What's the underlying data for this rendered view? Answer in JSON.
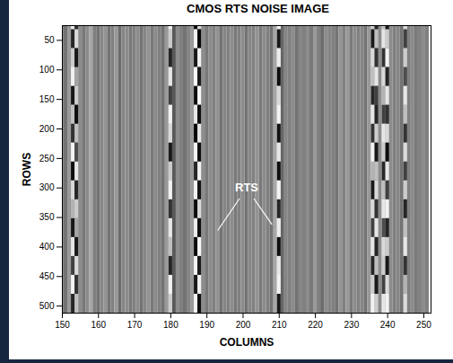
{
  "chart_data": {
    "type": "heatmap",
    "title": "CMOS RTS NOISE IMAGE",
    "xlabel": "COLUMNS",
    "ylabel": "ROWS",
    "xlim": [
      150,
      252
    ],
    "ylim": [
      25,
      512
    ],
    "xticks": [
      150,
      160,
      170,
      180,
      190,
      200,
      210,
      220,
      230,
      240,
      250
    ],
    "yticks": [
      50,
      100,
      150,
      200,
      250,
      300,
      350,
      400,
      450,
      500
    ],
    "color_range": [
      -1,
      1
    ],
    "column_cells": {
      "columns": [
        150,
        151,
        152,
        153,
        154,
        155,
        156,
        157,
        158,
        159,
        160,
        161,
        162,
        163,
        164,
        165,
        166,
        167,
        168,
        169,
        170,
        171,
        172,
        173,
        174,
        175,
        176,
        177,
        178,
        179,
        180,
        181,
        182,
        183,
        184,
        185,
        186,
        187,
        188,
        189,
        190,
        191,
        192,
        193,
        194,
        195,
        196,
        197,
        198,
        199,
        200,
        201,
        202,
        203,
        204,
        205,
        206,
        207,
        208,
        209,
        210,
        211,
        212,
        213,
        214,
        215,
        216,
        217,
        218,
        219,
        220,
        221,
        222,
        223,
        224,
        225,
        226,
        227,
        228,
        229,
        230,
        231,
        232,
        233,
        234,
        235,
        236,
        237,
        238,
        239,
        240,
        241,
        242,
        243,
        244,
        245,
        246,
        247,
        248,
        249,
        250,
        251
      ],
      "values": [
        0.05,
        -0.1,
        0.2,
        0.5,
        -0.4,
        0.1,
        -0.05,
        0.1,
        0.3,
        0.0,
        -0.1,
        0.05,
        0.15,
        -0.1,
        0.0,
        0.2,
        -0.15,
        0.05,
        0.1,
        -0.05,
        0.0,
        0.1,
        -0.1,
        0.05,
        0.15,
        -0.05,
        0.1,
        0.0,
        -0.1,
        0.2,
        0.4,
        -0.3,
        0.1,
        0.0,
        -0.1,
        0.05,
        0.2,
        0.6,
        -0.5,
        0.1,
        -0.05,
        0.1,
        0.0,
        0.15,
        -0.1,
        0.05,
        0.0,
        0.1,
        -0.05,
        0.0,
        0.1,
        -0.1,
        0.05,
        0.0,
        0.15,
        -0.05,
        0.1,
        0.0,
        -0.1,
        0.3,
        0.5,
        -0.2,
        0.05,
        0.0,
        0.1,
        -0.1,
        0.05,
        0.0,
        0.1,
        -0.05,
        0.2,
        0.0,
        -0.15,
        0.1,
        0.05,
        0.0,
        -0.1,
        0.15,
        0.0,
        0.2,
        -0.05,
        0.1,
        0.0,
        0.05,
        -0.1,
        0.2,
        0.5,
        -0.3,
        0.1,
        0.4,
        -0.3,
        0.1,
        0.0,
        0.05,
        -0.1,
        0.3,
        0.0,
        0.1,
        -0.05,
        0.0,
        0.1,
        0.0
      ]
    },
    "rts_cells": {
      "row_edges": [
        0,
        32,
        64,
        96,
        128,
        160,
        192,
        224,
        256,
        288,
        320,
        352,
        384,
        416,
        448,
        480,
        512
      ],
      "columns": [
        153,
        154,
        180,
        187,
        188,
        210,
        236,
        237,
        239,
        240,
        245
      ],
      "values": [
        [
          0.8,
          -0.7,
          0.6,
          0.9,
          -0.8,
          0.5,
          -0.6,
          0.9,
          -0.9,
          0.7,
          0.4,
          -0.8,
          0.8,
          -0.5,
          0.9,
          -0.7
        ],
        [
          -0.6,
          0.7,
          -0.8,
          0.3,
          0.6,
          -0.9,
          0.5,
          -0.4,
          0.8,
          -0.7,
          0.6,
          0.3,
          -0.8,
          0.7,
          -0.6,
          0.5
        ],
        [
          0.9,
          0.6,
          -0.7,
          0.8,
          -0.5,
          0.9,
          0.7,
          -0.8,
          0.6,
          0.9,
          -0.6,
          0.8,
          0.5,
          -0.7,
          0.9,
          0.6
        ],
        [
          -0.9,
          0.9,
          -0.8,
          0.95,
          -0.9,
          0.8,
          -0.95,
          0.9,
          -0.7,
          0.9,
          -0.9,
          0.85,
          -0.9,
          0.9,
          -0.8,
          0.9
        ],
        [
          0.7,
          -0.95,
          0.9,
          -0.8,
          0.95,
          -0.9,
          0.8,
          -0.9,
          0.9,
          -0.85,
          0.7,
          -0.9,
          0.95,
          -0.8,
          0.9,
          -0.9
        ],
        [
          0.9,
          -0.8,
          0.85,
          -0.9,
          0.7,
          0.9,
          -0.85,
          0.8,
          -0.9,
          0.9,
          -0.7,
          0.85,
          -0.9,
          0.8,
          0.9,
          -0.8
        ],
        [
          0.6,
          -0.8,
          0.7,
          0.5,
          -0.7,
          0.8,
          -0.6,
          0.9,
          0.4,
          -0.8,
          0.7,
          -0.5,
          0.8,
          -0.7,
          0.6,
          0.9
        ],
        [
          -0.7,
          0.5,
          -0.6,
          0.8,
          -0.5,
          -0.7,
          0.6,
          -0.8,
          0.5,
          0.7,
          -0.6,
          0.8,
          -0.7,
          0.5,
          -0.8,
          0.6
        ],
        [
          0.5,
          0.8,
          -0.6,
          0.7,
          0.4,
          -0.5,
          0.8,
          0.6,
          -0.7,
          0.5,
          0.8,
          -0.4,
          0.7,
          0.6,
          -0.5,
          0.8
        ],
        [
          -0.8,
          0.6,
          0.9,
          -0.7,
          0.8,
          -0.6,
          0.7,
          -0.9,
          0.8,
          -0.5,
          0.9,
          -0.7,
          0.6,
          -0.8,
          0.7,
          0.9
        ],
        [
          0.7,
          -0.5,
          0.6,
          -0.4,
          0.8,
          0.5,
          -0.6,
          0.7,
          -0.5,
          0.6,
          -0.7,
          0.5,
          0.8,
          -0.6,
          0.4,
          0.7
        ]
      ]
    },
    "annotation": {
      "text": "RTS",
      "x": 201,
      "y": 300,
      "lines": [
        [
          [
            199,
            318
          ],
          [
            193,
            372
          ]
        ],
        [
          [
            203,
            318
          ],
          [
            208,
            362
          ]
        ]
      ]
    }
  }
}
